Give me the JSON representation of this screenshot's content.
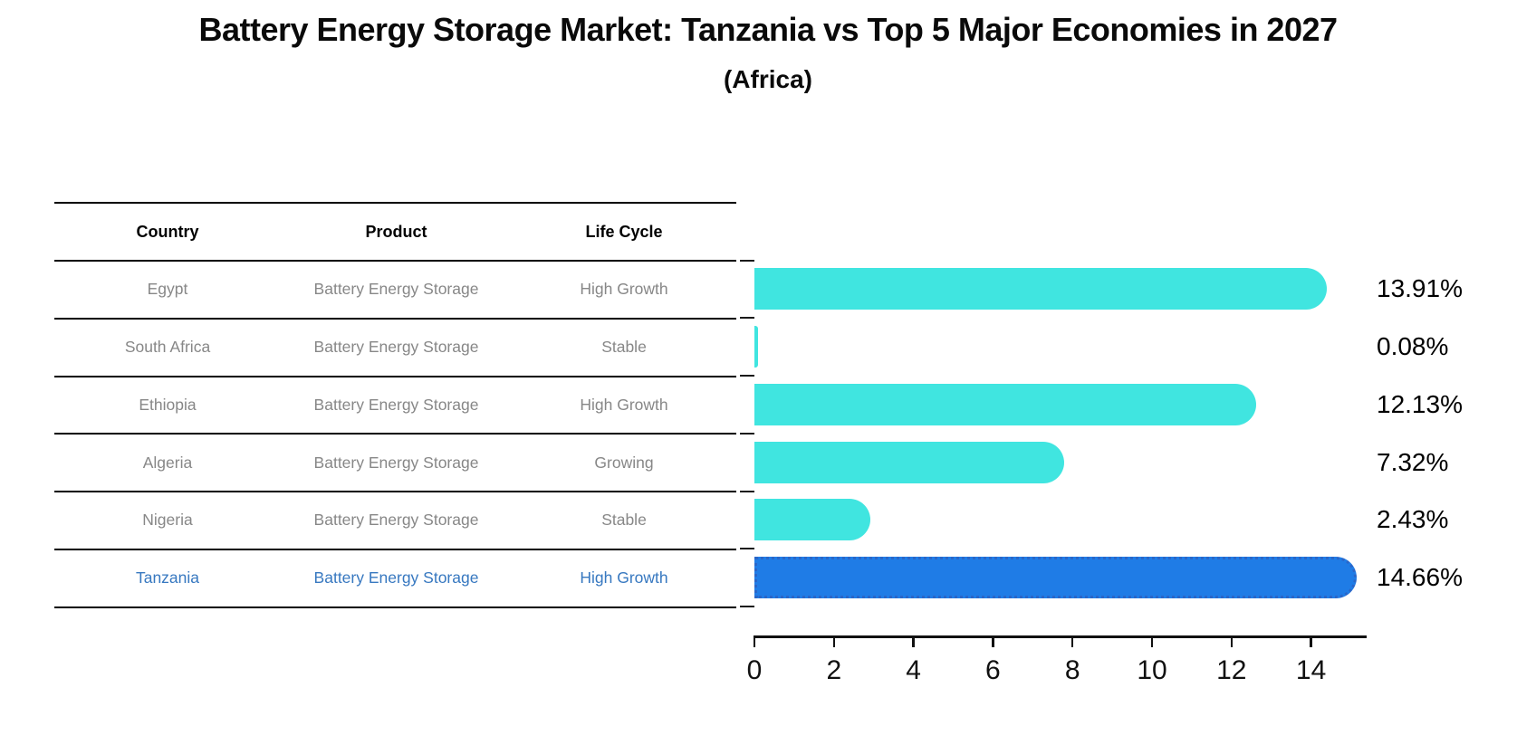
{
  "header": {
    "title": "Battery Energy Storage Market: Tanzania vs Top 5 Major Economies in 2027",
    "subtitle": "(Africa)"
  },
  "table": {
    "columns": [
      "Country",
      "Product",
      "Life Cycle"
    ],
    "rows": [
      {
        "country": "Egypt",
        "product": "Battery Energy Storage",
        "life_cycle": "High Growth",
        "highlight": false
      },
      {
        "country": "South Africa",
        "product": "Battery Energy Storage",
        "life_cycle": "Stable",
        "highlight": false
      },
      {
        "country": "Ethiopia",
        "product": "Battery Energy Storage",
        "life_cycle": "High Growth",
        "highlight": false
      },
      {
        "country": "Algeria",
        "product": "Battery Energy Storage",
        "life_cycle": "Growing",
        "highlight": false
      },
      {
        "country": "Nigeria",
        "product": "Battery Energy Storage",
        "life_cycle": "Stable",
        "highlight": false
      },
      {
        "country": "Tanzania",
        "product": "Battery Energy Storage",
        "life_cycle": "High Growth",
        "highlight": true
      }
    ]
  },
  "chart_data": {
    "type": "bar",
    "orientation": "horizontal",
    "title": "Battery Energy Storage Market: Tanzania vs Top 5 Major Economies in 2027 (Africa)",
    "categories": [
      "Egypt",
      "South Africa",
      "Ethiopia",
      "Algeria",
      "Nigeria",
      "Tanzania"
    ],
    "values": [
      13.91,
      0.08,
      12.13,
      7.32,
      2.43,
      14.66
    ],
    "value_labels": [
      "13.91%",
      "0.08%",
      "12.13%",
      "7.32%",
      "2.43%",
      "14.66%"
    ],
    "xlabel": "",
    "ylabel": "",
    "xlim": [
      0,
      15.4
    ],
    "x_ticks": [
      0,
      2,
      4,
      6,
      8,
      10,
      12,
      14
    ],
    "grid": false,
    "legend": false,
    "highlight_index": 5,
    "bar_color": "#40e5e0",
    "highlight_color": "#1f7ce6",
    "highlight_edge_style": "dotted",
    "highlight_text_color": "#3778c0",
    "row_text_color": "#878787"
  }
}
